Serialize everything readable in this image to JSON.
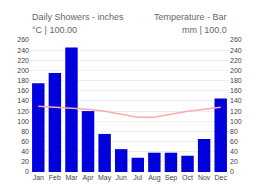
{
  "chart_data": {
    "type": "bar",
    "categories": [
      "Jan",
      "Feb",
      "Mar",
      "Apr",
      "May",
      "Jun",
      "Jul",
      "Aug",
      "Sep",
      "Oct",
      "Nov",
      "Dec"
    ],
    "series": [
      {
        "type": "bar",
        "color": "#0000dd",
        "values": [
          175,
          195,
          245,
          120,
          75,
          45,
          28,
          38,
          38,
          32,
          65,
          145
        ]
      },
      {
        "type": "line",
        "color": "#ffaaaa",
        "axis": "y2",
        "values": [
          129.5667,
          127.5733,
          125.58,
          123.5867,
          119.6,
          113.62,
          107.64,
          107.64,
          113.62,
          119.6,
          123.5867,
          127.5733
        ]
      }
    ],
    "ylim": [
      0,
      260
    ],
    "yticks": [
      0,
      20,
      40,
      60,
      80,
      100,
      120,
      140,
      160,
      180,
      200,
      220,
      240,
      260
    ],
    "y2lim": [
      0,
      260
    ],
    "y2ticks": [
      0,
      20,
      40,
      60,
      80,
      100,
      120,
      140,
      160,
      180,
      200,
      220,
      240,
      260
    ],
    "grid": true,
    "annotations": [
      "Daily Showers - inches",
      "Temperature - Bar",
      "°C | 100.00",
      "mm | 100.0"
    ]
  }
}
